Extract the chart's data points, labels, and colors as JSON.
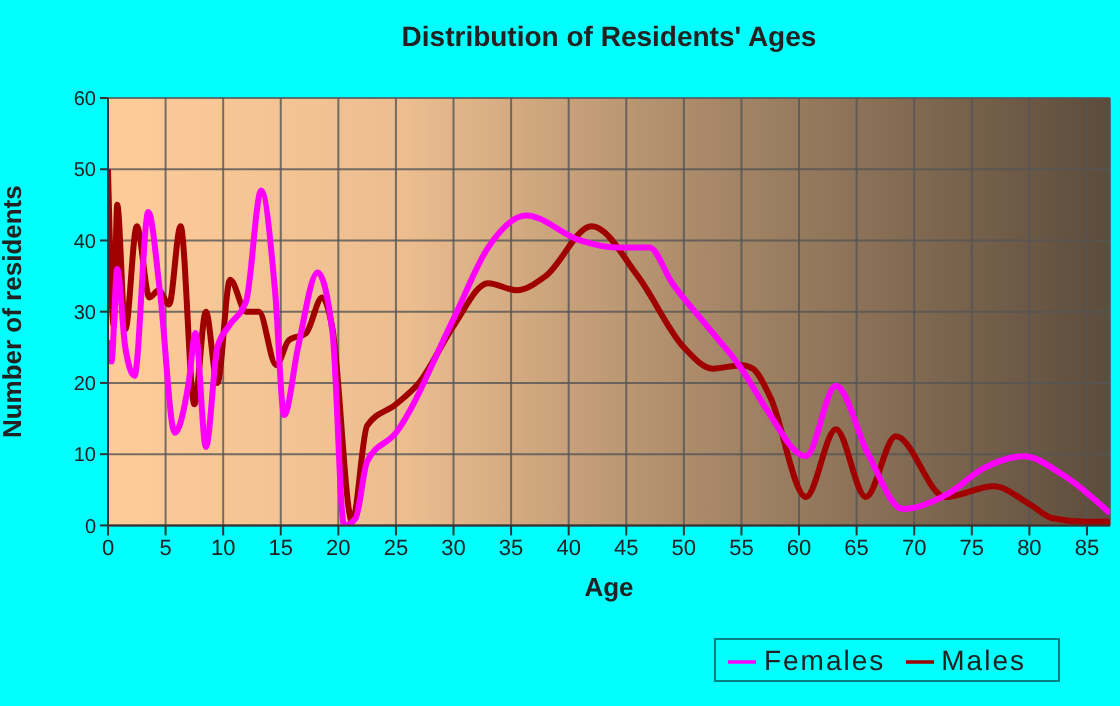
{
  "chart_data": {
    "type": "line",
    "title": "Distribution of Residents' Ages",
    "xlabel": "Age",
    "ylabel": "Number of residents",
    "xlim": [
      0,
      87
    ],
    "xticks": [
      0,
      5,
      10,
      15,
      20,
      25,
      30,
      35,
      40,
      45,
      50,
      55,
      60,
      65,
      70,
      75,
      80,
      85
    ],
    "ylim": [
      0,
      60
    ],
    "yticks": [
      0,
      10,
      20,
      30,
      40,
      50,
      60
    ],
    "grid": true,
    "legend": "bottom right",
    "marker": "none",
    "line_style": "solid",
    "series": [
      {
        "name": "Males",
        "color": "#a00000",
        "x": [
          0,
          0.5,
          0.8,
          1.5,
          2.5,
          3.6,
          4.4,
          5.3,
          6.3,
          7.5,
          8.5,
          9.5,
          10.6,
          12,
          13.1,
          14.6,
          15.7,
          17.2,
          18.6,
          19.5,
          21.2,
          22.5,
          25,
          27,
          30,
          33,
          35.5,
          38,
          42,
          46,
          50,
          52.5,
          55,
          56,
          57.5,
          60.6,
          63.2,
          65.8,
          68.4,
          72.7,
          76.9,
          80,
          82,
          85,
          87
        ],
        "values": [
          50,
          28,
          45,
          27.5,
          42,
          32,
          33,
          31,
          42,
          17,
          30,
          20,
          34.5,
          30,
          30,
          22.5,
          26,
          27,
          32,
          27.5,
          0.5,
          14,
          17,
          20,
          28,
          34,
          33,
          35,
          42,
          35,
          25,
          22,
          22.5,
          22,
          18,
          4,
          13.5,
          4,
          12.5,
          4,
          5.5,
          3,
          1,
          0.5,
          0.5
        ]
      },
      {
        "name": "Females",
        "color": "#ff00ff",
        "x": [
          0,
          0.3,
          0.8,
          1.5,
          2.3,
          3.5,
          4.5,
          5.8,
          7,
          7.6,
          8.5,
          9.5,
          10.5,
          12,
          13.3,
          14.5,
          15.3,
          16.5,
          18.2,
          19.5,
          20.5,
          21.5,
          22.5,
          25,
          30,
          33,
          36.3,
          41,
          44,
          47,
          49,
          52,
          55,
          57.1,
          60.6,
          63.2,
          66,
          69,
          73,
          76,
          79.5,
          83,
          87
        ],
        "values": [
          26,
          23,
          36,
          25,
          21,
          44,
          33,
          13,
          20,
          27,
          11,
          25,
          28,
          31.5,
          47,
          33,
          15.5,
          25,
          35.5,
          27,
          0,
          1,
          9,
          13,
          29,
          39,
          43.5,
          40,
          39,
          39,
          34,
          28,
          22,
          16.5,
          9.7,
          19.6,
          10,
          2.3,
          4.5,
          8,
          9.7,
          7,
          1.7
        ]
      }
    ]
  }
}
